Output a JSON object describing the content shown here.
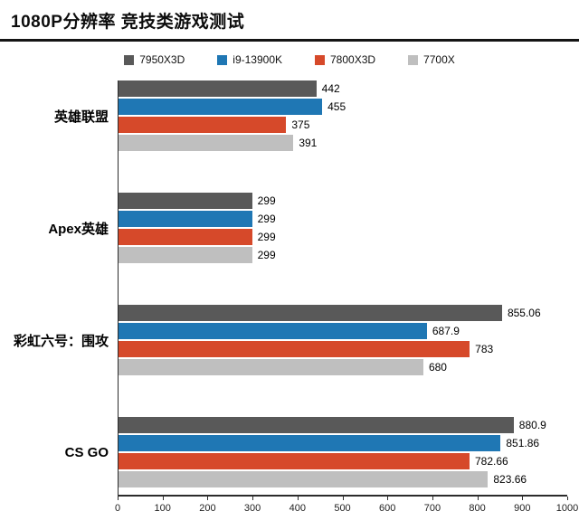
{
  "header": {
    "title": "1080P分辨率 竞技类游戏测试"
  },
  "chart_data": {
    "type": "bar",
    "orientation": "horizontal",
    "title": "1080P分辨率 竞技类游戏测试",
    "categories": [
      "英雄联盟",
      "Apex英雄",
      "彩虹六号：围攻",
      "CS GO"
    ],
    "series": [
      {
        "name": "7950X3D",
        "color": "#595959",
        "values": [
          442,
          299,
          855.06,
          880.9
        ]
      },
      {
        "name": "i9-13900K",
        "color": "#1f77b4",
        "values": [
          455,
          299,
          687.9,
          851.86
        ]
      },
      {
        "name": "7800X3D",
        "color": "#d6492a",
        "values": [
          375,
          299,
          783,
          782.66
        ]
      },
      {
        "name": "7700X",
        "color": "#bfbfbf",
        "values": [
          391,
          299,
          680,
          823.66
        ]
      }
    ],
    "xlim": [
      0,
      1000
    ],
    "x_ticks": [
      0,
      100,
      200,
      300,
      400,
      500,
      600,
      700,
      800,
      900,
      1000
    ],
    "legend_position": "top",
    "grid": false,
    "value_labels_shown": true
  }
}
